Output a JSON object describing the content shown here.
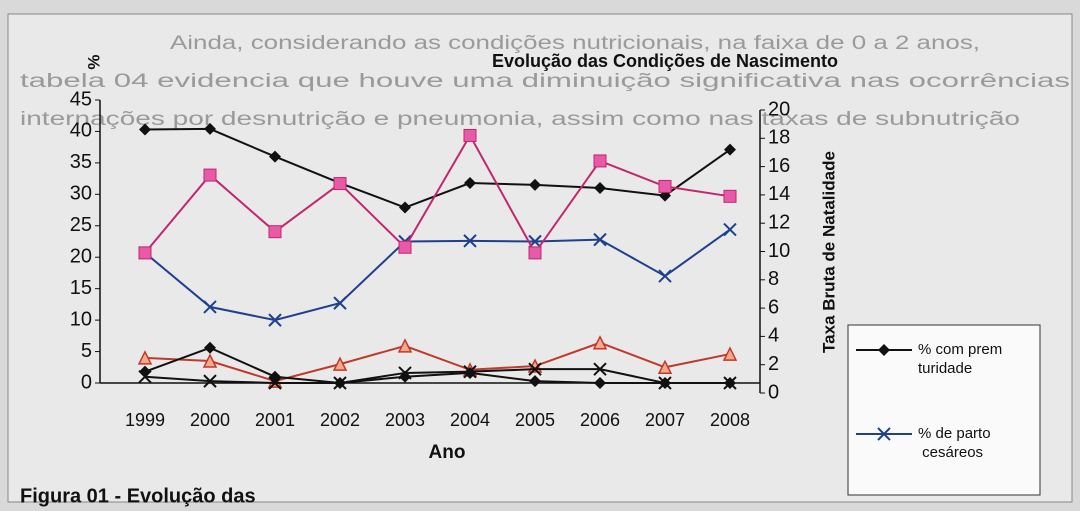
{
  "document": {
    "lines": [
      "Ainda, considerando as condições nutricionais, na faixa de 0 a 2 anos,",
      "tabela 04 evidencia que houve uma diminuição significativa nas ocorrências",
      "internações por desnutrição e pneumonia, assim como nas taxas de subnutrição"
    ],
    "caption": "Figura 01 - Evolução das"
  },
  "chart_data": {
    "type": "line",
    "title": "Evolução das Condições de Nascimento",
    "ylabel": "%",
    "y2label": "Taxa Bruta de Natalidade",
    "xlabel": "Ano",
    "categories": [
      "1999",
      "2000",
      "2001",
      "2002",
      "2003",
      "2004",
      "2005",
      "2006",
      "2007",
      "2008"
    ],
    "ylim": [
      0,
      45
    ],
    "yticks": [
      0,
      5,
      10,
      15,
      20,
      25,
      30,
      35,
      40,
      45
    ],
    "y2lim": [
      0,
      20
    ],
    "y2ticks": [
      0,
      2,
      4,
      6,
      8,
      10,
      12,
      14,
      16,
      18,
      20
    ],
    "series": [
      {
        "name": "% com prematuridade",
        "color": "#111111",
        "marker": "diamond",
        "values": [
          40.3,
          40.4,
          36,
          31.8,
          27.9,
          31.8,
          31.5,
          31,
          29.8,
          37.1
        ]
      },
      {
        "name": "% de partos cesáreos",
        "color": "#1f3f8f",
        "marker": "x",
        "values": [
          20.7,
          12.1,
          10,
          12.7,
          22.5,
          22.6,
          22.5,
          22.8,
          17,
          24.4
        ]
      },
      {
        "color": "#c2266e",
        "marker": "square",
        "axis": "y2",
        "values": [
          9.9,
          15.4,
          11.4,
          14.8,
          10.3,
          18.2,
          9.9,
          16.4,
          14.6,
          13.9
        ]
      },
      {
        "color": "#c0392b",
        "marker": "triangle",
        "values": [
          4,
          3.5,
          0.3,
          3,
          5.9,
          2.1,
          2.7,
          6.4,
          2.5,
          4.6
        ]
      },
      {
        "color": "#111111",
        "marker": "diamond",
        "values": [
          1.8,
          5.6,
          1,
          0,
          1,
          1.6,
          0.3,
          0,
          0,
          0
        ]
      },
      {
        "color": "#111111",
        "marker": "x",
        "values": [
          1,
          0.3,
          0,
          0,
          1.6,
          1.8,
          2.2,
          2.2,
          0,
          0
        ]
      }
    ]
  }
}
